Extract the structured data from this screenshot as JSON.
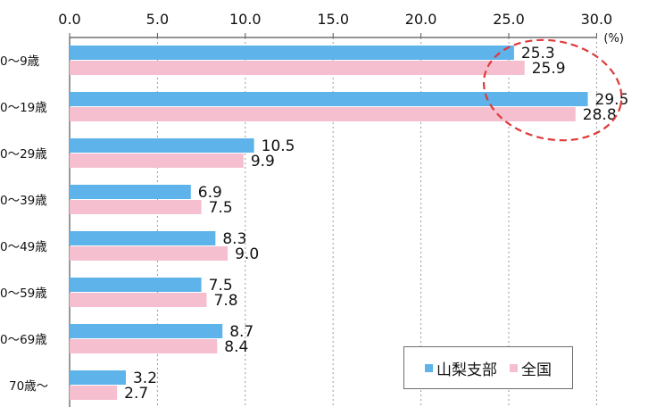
{
  "chart_data": {
    "type": "bar",
    "orientation": "horizontal",
    "categories": [
      "0～9歳",
      "0～19歳",
      "0～29歳",
      "0～39歳",
      "0～49歳",
      "0～59歳",
      "0～69歳",
      "70歳～"
    ],
    "series": [
      {
        "name": "山梨支部",
        "color": "#5db3ea",
        "values": [
          25.3,
          29.5,
          10.5,
          6.9,
          8.3,
          7.5,
          8.7,
          3.2
        ]
      },
      {
        "name": "全国",
        "color": "#f5bfd0",
        "values": [
          25.9,
          28.8,
          9.9,
          7.5,
          9.0,
          7.8,
          8.4,
          2.7
        ]
      }
    ],
    "x_ticks": [
      "0.0",
      "5.0",
      "10.0",
      "15.0",
      "20.0",
      "25.0",
      "30.0"
    ],
    "xlim": [
      0,
      30
    ],
    "unit_label": "(%)",
    "grid": "vertical dashed",
    "legend_position": "bottom-right",
    "annotation": "dashed red ellipse highlighting the 0～9歳 and 0～19歳 values",
    "annotation_color": "#e03a3a"
  }
}
